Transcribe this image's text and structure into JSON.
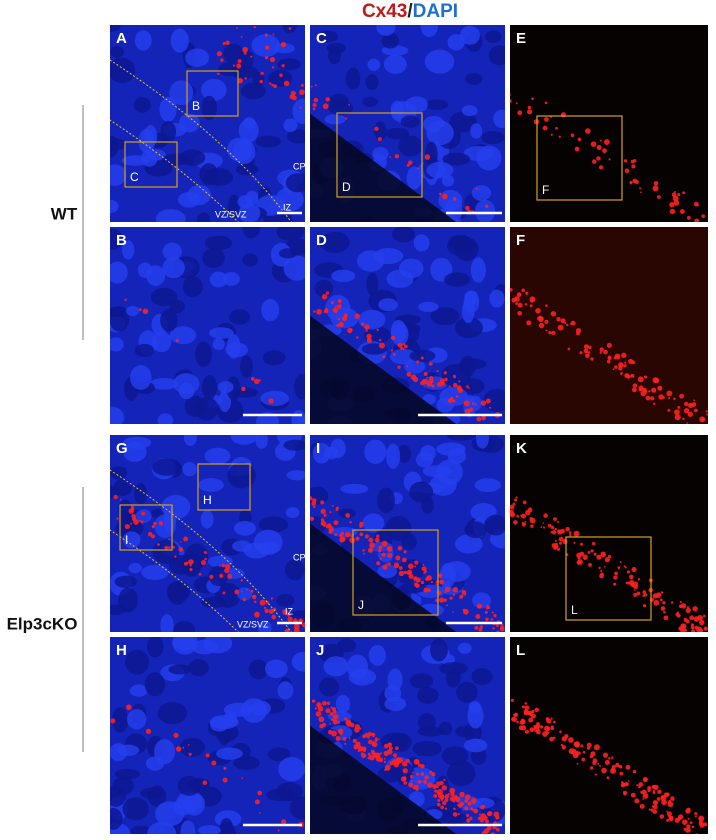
{
  "figure": {
    "title": {
      "red": "Cx43",
      "sep": "/",
      "blue": "DAPI"
    },
    "rows": [
      {
        "label": "WT"
      },
      {
        "label": "Elp3cKO"
      }
    ],
    "panels": [
      {
        "letter": "A",
        "insets": [
          "B",
          "C"
        ],
        "regions": [
          "CP",
          "IZ",
          "VZ/SVZ"
        ]
      },
      {
        "letter": "C",
        "insets": [
          "D"
        ]
      },
      {
        "letter": "E",
        "insets": [
          "F"
        ]
      },
      {
        "letter": "B"
      },
      {
        "letter": "D"
      },
      {
        "letter": "F"
      },
      {
        "letter": "G",
        "insets": [
          "H",
          "I"
        ],
        "regions": [
          "CP",
          "IZ",
          "VZ/SVZ"
        ]
      },
      {
        "letter": "I",
        "insets": [
          "J"
        ]
      },
      {
        "letter": "K",
        "insets": [
          "L"
        ]
      },
      {
        "letter": "H"
      },
      {
        "letter": "J"
      },
      {
        "letter": "L"
      }
    ]
  }
}
